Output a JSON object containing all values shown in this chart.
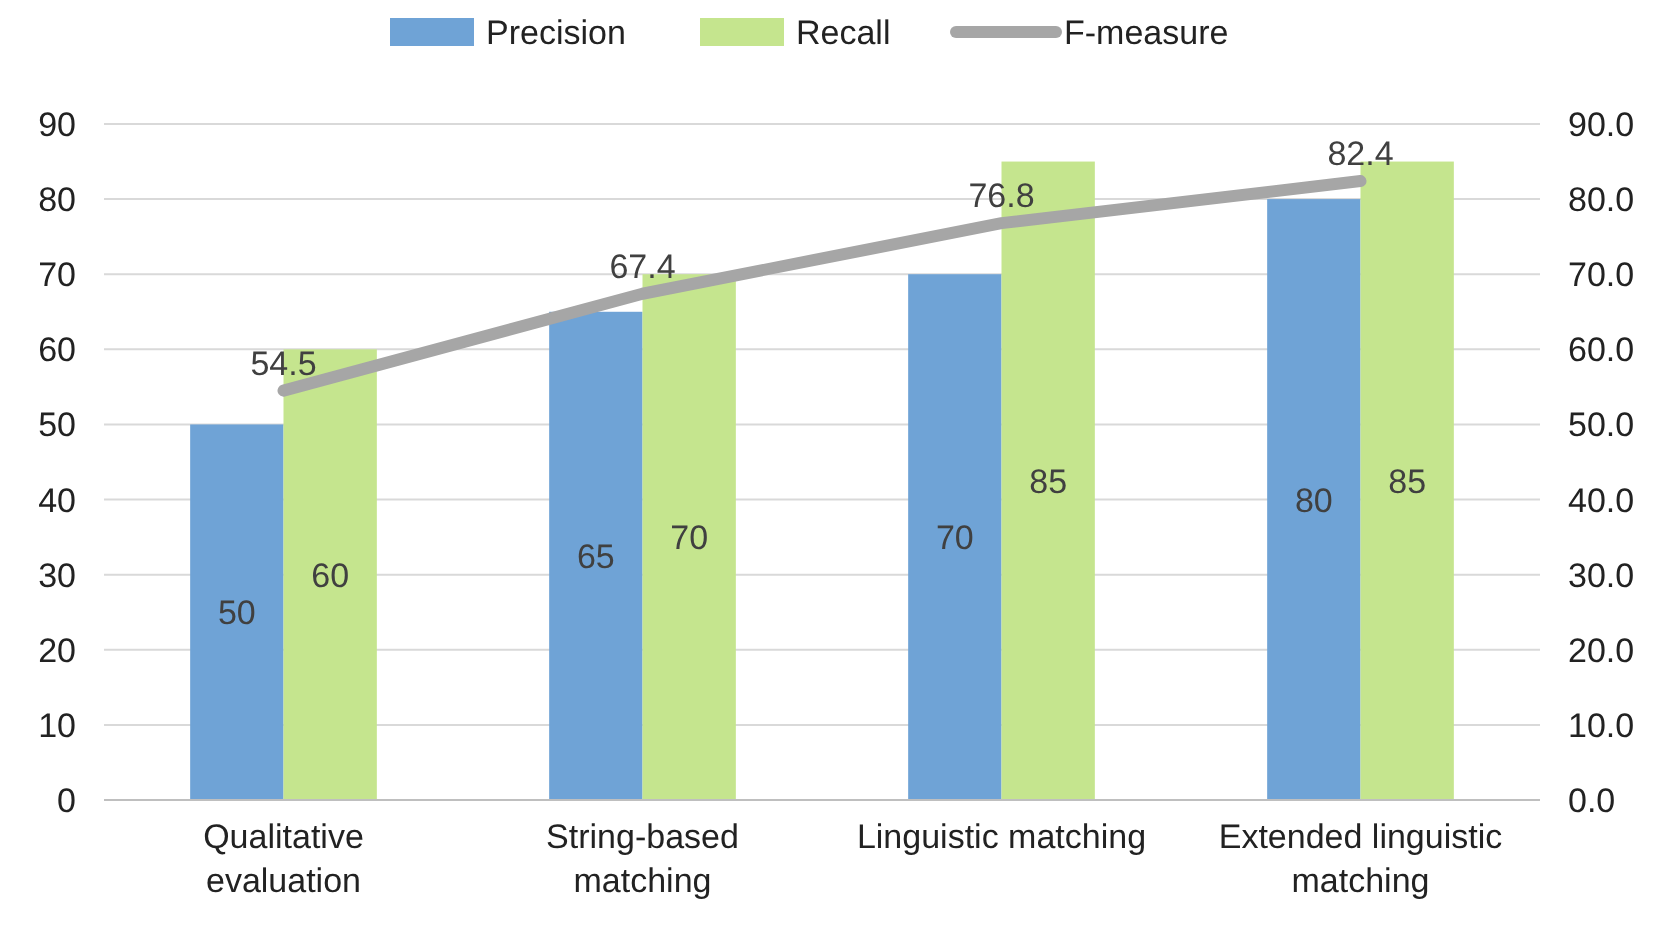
{
  "chart_data": {
    "type": "bar",
    "categories": [
      "Qualitative evaluation",
      "String-based matching",
      "Linguistic matching",
      "Extended linguistic matching"
    ],
    "series": [
      {
        "name": "Precision",
        "color": "#6fa3d6",
        "values": [
          50,
          65,
          70,
          80
        ]
      },
      {
        "name": "Recall",
        "color": "#c5e58e",
        "values": [
          60,
          70,
          85,
          85
        ]
      },
      {
        "name": "F-measure",
        "type": "line",
        "axis": "y2",
        "color": "#a6a6a6",
        "values": [
          54.5,
          67.4,
          76.8,
          82.4
        ]
      }
    ],
    "ylim": [
      0,
      90
    ],
    "yticks": [
      0,
      10,
      20,
      30,
      40,
      50,
      60,
      70,
      80,
      90
    ],
    "y2lim": [
      0,
      90
    ],
    "y2ticks": [
      {
        "value": 0,
        "label": "0.0"
      },
      {
        "value": 10,
        "label": "10.0"
      },
      {
        "value": 20,
        "label": "20.0"
      },
      {
        "value": 30,
        "label": "30.0"
      },
      {
        "value": 40,
        "label": "40.0"
      },
      {
        "value": 50,
        "label": "50.0"
      },
      {
        "value": 60,
        "label": "60.0"
      },
      {
        "value": 70,
        "label": "70.0"
      },
      {
        "value": 80,
        "label": "80.0"
      },
      {
        "value": 90,
        "label": "90.0"
      }
    ],
    "grid": "y",
    "legend": "top",
    "data_labels": true
  }
}
